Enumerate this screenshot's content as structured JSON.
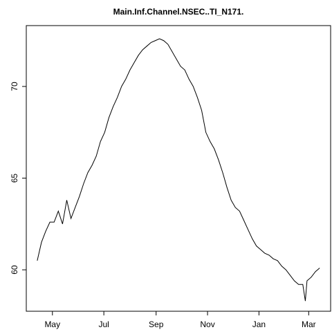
{
  "chart_data": {
    "type": "line",
    "title": "Main.Inf.Channel.NSEC..TI_N171.",
    "x": [
      0,
      5,
      10,
      15,
      20,
      25,
      30,
      35,
      40,
      45,
      50,
      55,
      60,
      65,
      70,
      75,
      80,
      85,
      90,
      95,
      100,
      105,
      110,
      115,
      120,
      125,
      130,
      135,
      140,
      145,
      150,
      155,
      160,
      165,
      170,
      175,
      180,
      185,
      190,
      195,
      200,
      205,
      210,
      215,
      220,
      225,
      230,
      235,
      240,
      245,
      250,
      255,
      260,
      265,
      270,
      275,
      280,
      285,
      290,
      295,
      300,
      305,
      310,
      315,
      318,
      320,
      325,
      330,
      335
    ],
    "series": [
      {
        "color": "#000000",
        "values": [
          60.5,
          61.5,
          62.1,
          62.6,
          62.6,
          63.2,
          62.5,
          63.8,
          62.8,
          63.4,
          64.0,
          64.7,
          65.3,
          65.7,
          66.2,
          67.0,
          67.5,
          68.3,
          68.9,
          69.4,
          70.0,
          70.4,
          70.9,
          71.3,
          71.7,
          72.0,
          72.2,
          72.4,
          72.5,
          72.6,
          72.5,
          72.3,
          71.9,
          71.5,
          71.1,
          70.9,
          70.4,
          70.0,
          69.4,
          68.7,
          67.5,
          67.0,
          66.6,
          66.0,
          65.3,
          64.5,
          63.8,
          63.4,
          63.2,
          62.7,
          62.2,
          61.7,
          61.3,
          61.1,
          60.9,
          60.8,
          60.6,
          60.5,
          60.2,
          60.0,
          59.7,
          59.4,
          59.2,
          59.2,
          58.3,
          59.4,
          59.6,
          59.9,
          60.1
        ]
      }
    ],
    "xlim": [
      -13,
      348
    ],
    "xticks": [
      {
        "value": 18,
        "label": "May"
      },
      {
        "value": 79,
        "label": "Jul"
      },
      {
        "value": 141,
        "label": "Sep"
      },
      {
        "value": 202,
        "label": "Nov"
      },
      {
        "value": 263,
        "label": "Jan"
      },
      {
        "value": 322,
        "label": "Mar"
      }
    ],
    "ylim": [
      57.74,
      73.32
    ],
    "yticks": [
      60,
      65,
      70
    ]
  }
}
